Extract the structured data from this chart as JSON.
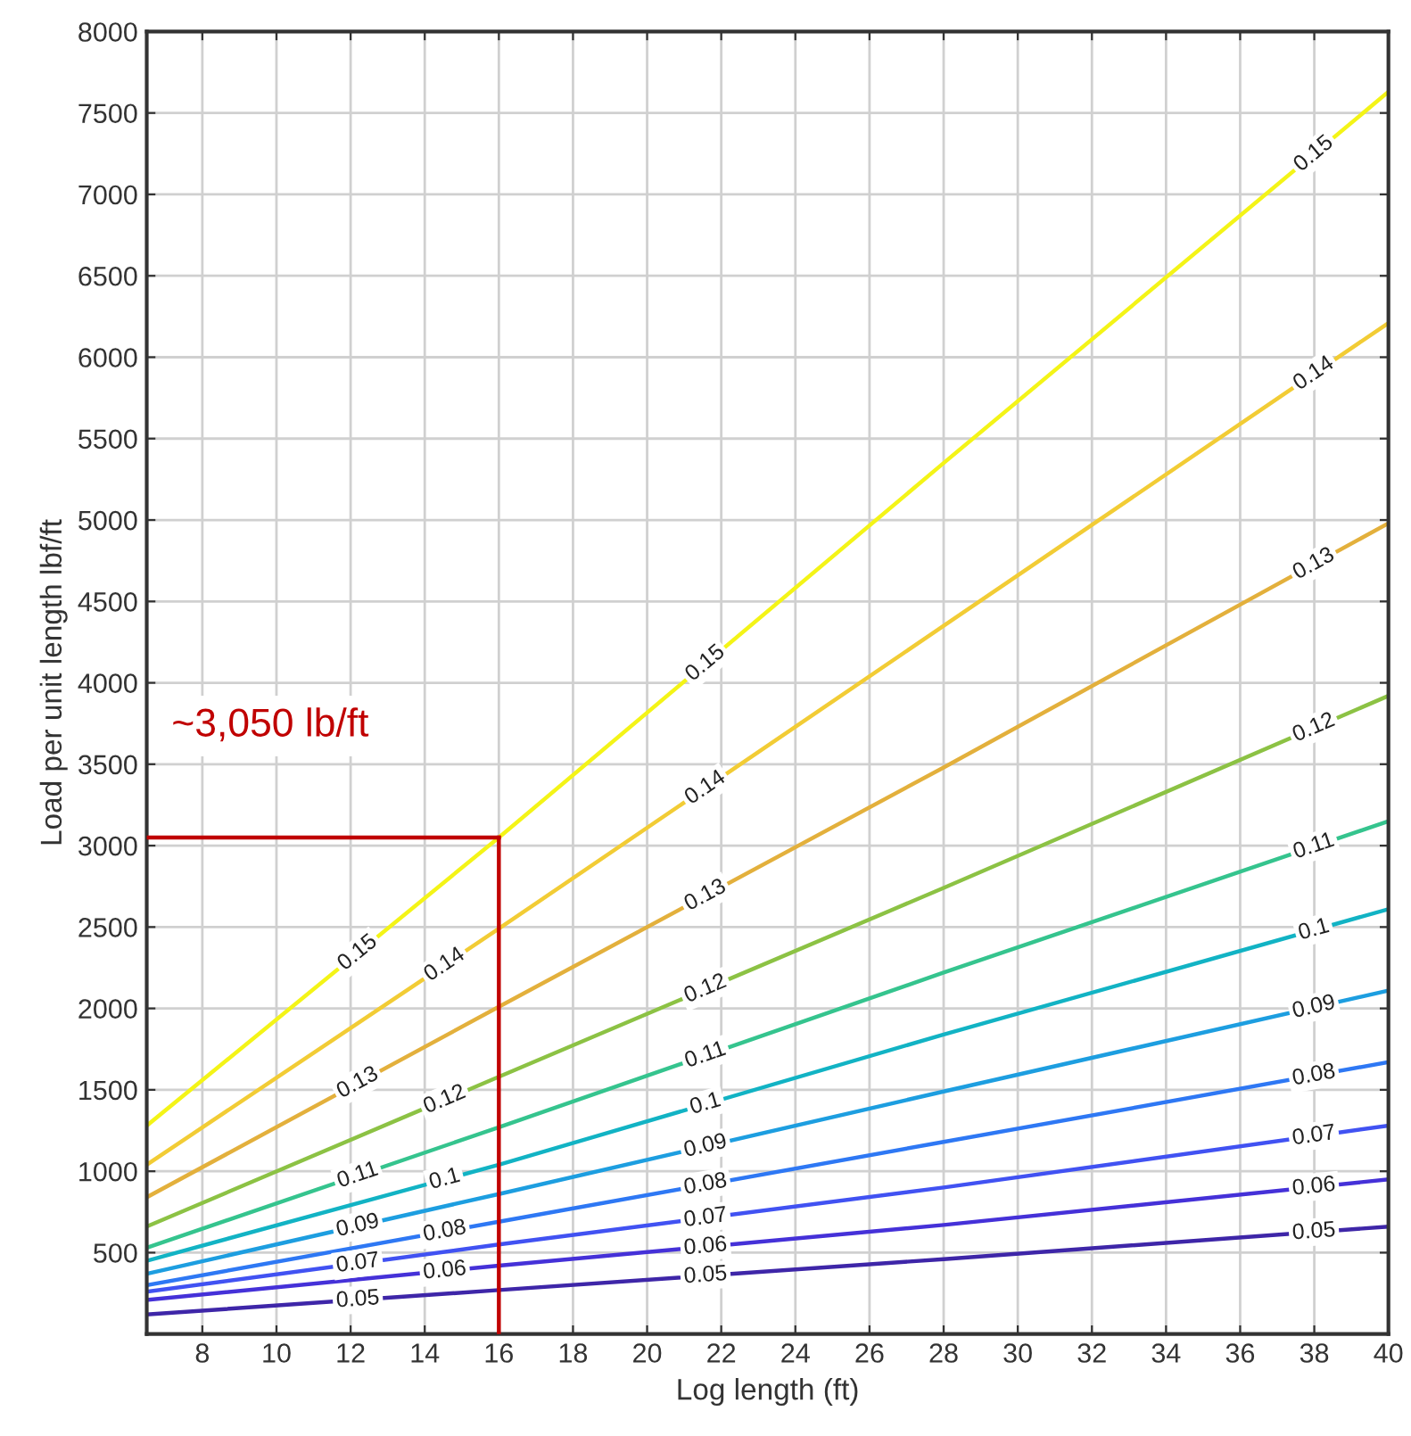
{
  "chart_data": {
    "type": "line",
    "xlabel": "Log length (ft)",
    "ylabel": "Load per unit length lbf/ft",
    "x": [
      6.5,
      16,
      28,
      40
    ],
    "series": [
      {
        "name": "0.05",
        "color": "#3e26a8",
        "values": [
          120,
          270,
          460,
          660
        ]
      },
      {
        "name": "0.06",
        "color": "#4531d8",
        "values": [
          210,
          420,
          670,
          950
        ]
      },
      {
        "name": "0.07",
        "color": "#4152f2",
        "values": [
          260,
          550,
          900,
          1280
        ]
      },
      {
        "name": "0.08",
        "color": "#2e78f4",
        "values": [
          300,
          690,
          1180,
          1670
        ]
      },
      {
        "name": "0.09",
        "color": "#1d9ee0",
        "values": [
          370,
          860,
          1490,
          2110
        ]
      },
      {
        "name": "0.1",
        "color": "#12b3c4",
        "values": [
          450,
          1040,
          1840,
          2610
        ]
      },
      {
        "name": "0.11",
        "color": "#35c48e",
        "values": [
          530,
          1270,
          2220,
          3150
        ]
      },
      {
        "name": "0.12",
        "color": "#8cc244",
        "values": [
          660,
          1580,
          2740,
          3920
        ]
      },
      {
        "name": "0.13",
        "color": "#e3b03c",
        "values": [
          840,
          2010,
          3480,
          4980
        ]
      },
      {
        "name": "0.14",
        "color": "#f2cc35",
        "values": [
          1040,
          2490,
          4350,
          6210
        ]
      },
      {
        "name": "0.15",
        "color": "#f4f417",
        "values": [
          1280,
          3050,
          5350,
          7630
        ]
      }
    ],
    "xlim": [
      6.5,
      40
    ],
    "ylim": [
      0,
      8000
    ],
    "xticks": [
      8,
      10,
      12,
      14,
      16,
      18,
      20,
      22,
      24,
      26,
      28,
      30,
      32,
      34,
      36,
      38,
      40
    ],
    "yticks": [
      500,
      1000,
      1500,
      2000,
      2500,
      3000,
      3500,
      4000,
      4500,
      5000,
      5500,
      6000,
      6500,
      7000,
      7500,
      8000
    ],
    "ref_lines": [
      {
        "axis": "y",
        "value": 3050,
        "label": "~3,050 lb/ft",
        "color": "#c00000"
      },
      {
        "axis": "x",
        "value": 16,
        "color": "#c00000"
      }
    ],
    "grid": true,
    "legend": false,
    "marker": "none",
    "line_style": "solid"
  }
}
